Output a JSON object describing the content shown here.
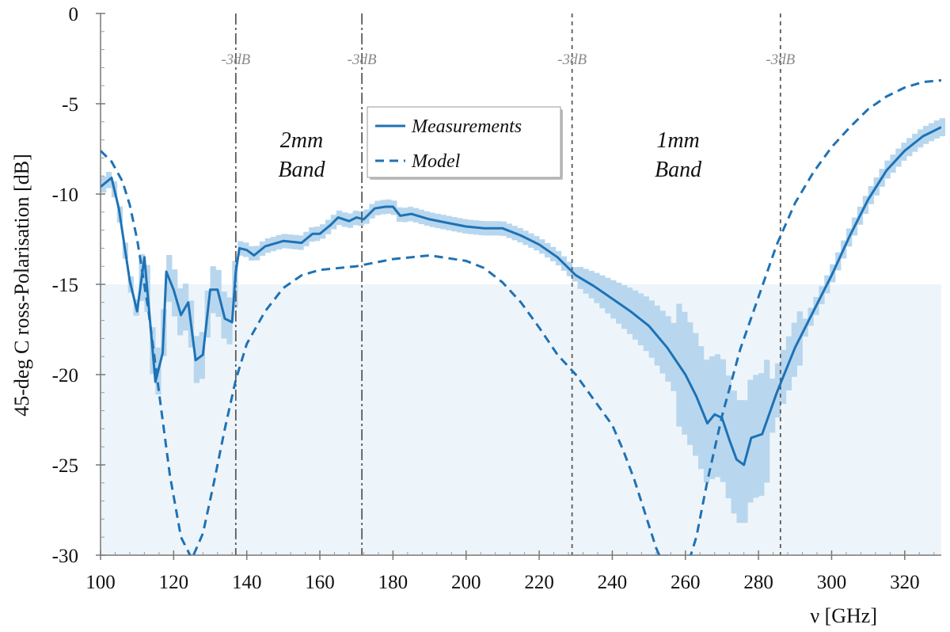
{
  "chart_data": {
    "type": "line",
    "xlabel": "ν [GHz]",
    "ylabel": "45-deg C ross-Polarisation [dB]",
    "xlim": [
      100,
      330
    ],
    "ylim": [
      -30,
      0
    ],
    "x_ticks": [
      "100",
      "120",
      "140",
      "160",
      "180",
      "200",
      "220",
      "240",
      "260",
      "280",
      "300",
      "320"
    ],
    "y_ticks": [
      "0",
      "-5",
      "-10",
      "-15",
      "-20",
      "-25",
      "-30"
    ],
    "shaded_region": {
      "y_from": -30,
      "y_to": -15,
      "color": "#eef5fa"
    },
    "vlines": [
      {
        "x": 137,
        "label": "-3dB",
        "style": "dash-dot"
      },
      {
        "x": 171.5,
        "label": "-3dB",
        "style": "dash-dot"
      },
      {
        "x": 229,
        "label": "-3dB",
        "style": "dashed"
      },
      {
        "x": 286,
        "label": "-3dB",
        "style": "dashed"
      }
    ],
    "annotations": [
      {
        "text": [
          "2mm",
          "Band"
        ],
        "x": 155,
        "y": -7.5
      },
      {
        "text": [
          "1mm",
          "Band"
        ],
        "x": 258,
        "y": -7.5
      }
    ],
    "legend": {
      "position": "top-center",
      "entries": [
        "Measurements",
        "Model"
      ]
    },
    "series": [
      {
        "name": "Measurements",
        "style": "solid",
        "color": "#1e72b5",
        "band_color": "#b8d7ee",
        "x": [
          100,
          103,
          105,
          108,
          110,
          112,
          115,
          117,
          118,
          120,
          122,
          124,
          126,
          128,
          130,
          132,
          134,
          136,
          137,
          138,
          140,
          142,
          145,
          150,
          155,
          158,
          160,
          163,
          165,
          168,
          170,
          172,
          175,
          178,
          180,
          182,
          185,
          190,
          195,
          200,
          205,
          210,
          215,
          220,
          225,
          230,
          235,
          240,
          245,
          250,
          255,
          260,
          263,
          266,
          268,
          270,
          272,
          274,
          276,
          278,
          281,
          285,
          290,
          295,
          300,
          305,
          310,
          315,
          320,
          325,
          330
        ],
        "y": [
          -9.6,
          -9.1,
          -10.8,
          -14.8,
          -16.5,
          -13.5,
          -20.4,
          -18.8,
          -14.3,
          -15.3,
          -16.7,
          -16,
          -19.2,
          -18.9,
          -15.3,
          -15.3,
          -16.9,
          -17.1,
          -14.3,
          -13,
          -13.1,
          -13.4,
          -12.9,
          -12.6,
          -12.7,
          -12.2,
          -12.2,
          -11.7,
          -11.3,
          -11.5,
          -11.3,
          -11.4,
          -10.8,
          -10.7,
          -10.7,
          -11.2,
          -11.1,
          -11.4,
          -11.6,
          -11.8,
          -11.9,
          -11.9,
          -12.3,
          -12.8,
          -13.5,
          -14.5,
          -15.1,
          -15.8,
          -16.5,
          -17.3,
          -18.5,
          -20,
          -21.2,
          -22.7,
          -22.2,
          -22.4,
          -23.6,
          -24.7,
          -25,
          -23.5,
          -23.3,
          -21,
          -18.5,
          -16.5,
          -14.5,
          -12.3,
          -10.3,
          -8.7,
          -7.6,
          -6.8,
          -6.3
        ]
      },
      {
        "name": "Model",
        "style": "dashed",
        "color": "#1e72b5",
        "x": [
          100,
          103,
          106,
          108,
          110,
          113,
          116,
          119,
          122,
          125,
          128,
          131,
          134,
          137,
          140,
          145,
          150,
          155,
          160,
          170,
          180,
          190,
          200,
          205,
          210,
          215,
          220,
          225,
          230,
          235,
          240,
          243,
          246,
          249,
          252,
          253.5,
          261,
          263,
          266,
          270,
          275,
          280,
          285,
          290,
          295,
          300,
          305,
          310,
          315,
          320,
          325,
          330
        ],
        "y": [
          -7.6,
          -8.2,
          -9.3,
          -10.6,
          -12.5,
          -16.3,
          -21,
          -25.6,
          -29,
          -30.2,
          -28.8,
          -26,
          -23,
          -20.3,
          -18.3,
          -16.5,
          -15.2,
          -14.5,
          -14.2,
          -14,
          -13.6,
          -13.4,
          -13.7,
          -14.1,
          -14.9,
          -16,
          -17.4,
          -18.9,
          -20,
          -21.4,
          -22.8,
          -24.2,
          -25.8,
          -27.7,
          -29.6,
          -30.3,
          -30.3,
          -29,
          -25.9,
          -22.3,
          -18.6,
          -15.7,
          -12.8,
          -10.5,
          -8.8,
          -7.4,
          -6.3,
          -5.3,
          -4.6,
          -4.1,
          -3.8,
          -3.7
        ]
      }
    ]
  }
}
